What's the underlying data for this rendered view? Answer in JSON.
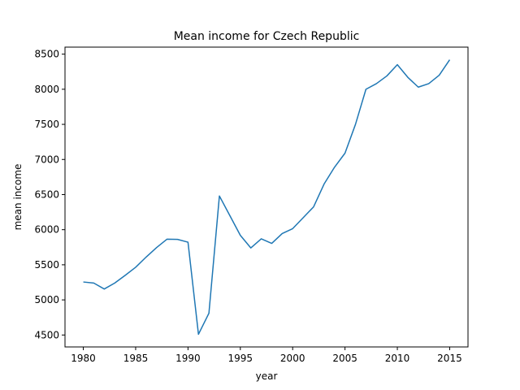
{
  "chart_data": {
    "type": "line",
    "title": "Mean income for Czech Republic",
    "xlabel": "year",
    "ylabel": "mean income",
    "xlim": [
      1978.25,
      1916.75
    ],
    "ylim": [
      4330,
      8600
    ],
    "x_ticks": [
      1980,
      1985,
      1990,
      1995,
      2000,
      2005,
      2010,
      2015
    ],
    "y_ticks": [
      4500,
      5000,
      5500,
      6000,
      6500,
      7000,
      7500,
      8000,
      8500
    ],
    "grid": false,
    "color": "#1f77b4",
    "series": [
      {
        "x": [
          1980,
          1981,
          1982,
          1983,
          1984,
          1985,
          1986,
          1987,
          1988,
          1989,
          1990,
          1991,
          1992,
          1993,
          1994,
          1995,
          1996,
          1997,
          1998,
          1999,
          2000,
          2001,
          2002,
          2003,
          2004,
          2005,
          2006,
          2007,
          2008,
          2009,
          2010,
          2011,
          2012,
          2013,
          2014,
          2015
        ],
        "y": [
          5255,
          5240,
          5155,
          5240,
          5350,
          5465,
          5610,
          5745,
          5865,
          5862,
          5822,
          4510,
          4810,
          6480,
          6200,
          5920,
          5740,
          5870,
          5805,
          5945,
          6015,
          6170,
          6325,
          6650,
          6890,
          7090,
          7500,
          8000,
          8080,
          8190,
          8350,
          8170,
          8030,
          8080,
          8200,
          8420
        ]
      }
    ]
  }
}
